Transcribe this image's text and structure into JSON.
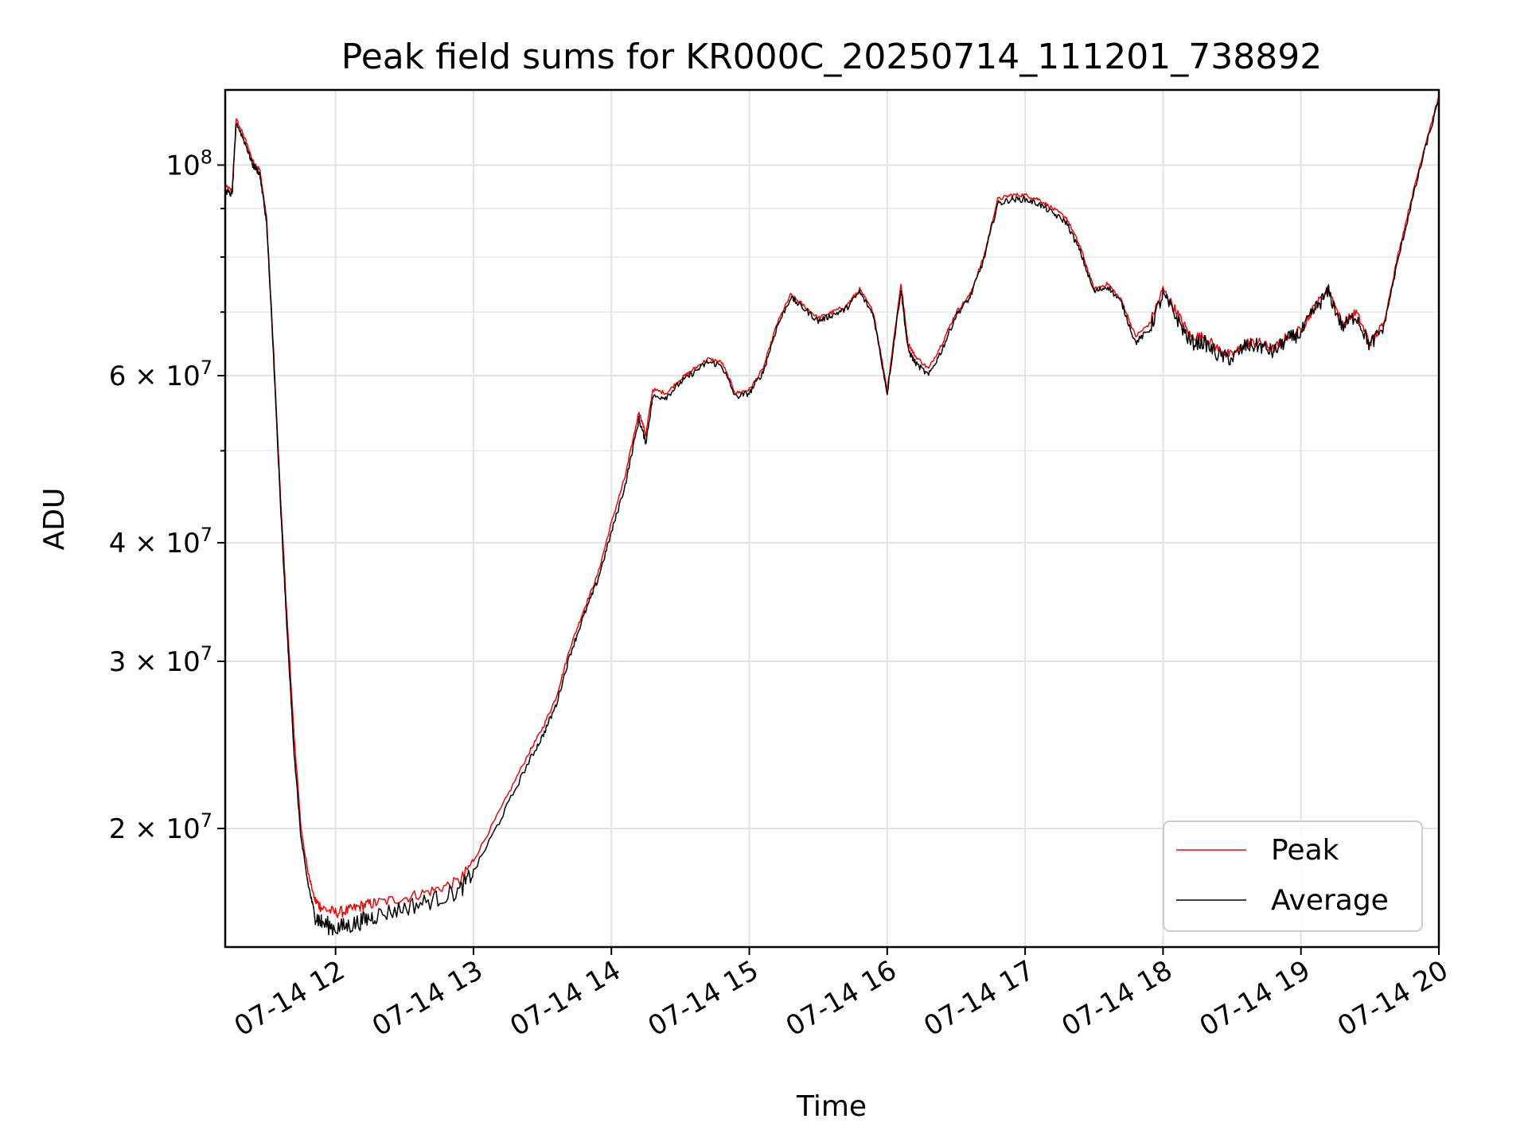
{
  "chart_data": {
    "type": "line",
    "title": "Peak field sums for KR000C_20250714_111201_738892",
    "xlabel": "Time",
    "ylabel": "ADU",
    "yscale": "log",
    "grid": true,
    "legend_position": "lower-right",
    "x_ticks": [
      "07-14 12",
      "07-14 13",
      "07-14 14",
      "07-14 15",
      "07-14 16",
      "07-14 17",
      "07-14 18",
      "07-14 19",
      "07-14 20"
    ],
    "x_tick_hours": [
      12,
      13,
      14,
      15,
      16,
      17,
      18,
      19,
      20
    ],
    "xlim_hours": [
      11.2,
      20.0
    ],
    "ylim": [
      15000000,
      120000000
    ],
    "y_ticks": [
      {
        "value": 20000000,
        "label": "2 × 10",
        "exp": "7"
      },
      {
        "value": 30000000,
        "label": "3 × 10",
        "exp": "7"
      },
      {
        "value": 40000000,
        "label": "4 × 10",
        "exp": "7"
      },
      {
        "value": 60000000,
        "label": "6 × 10",
        "exp": "7"
      },
      {
        "value": 100000000,
        "label": "10",
        "exp": "8"
      }
    ],
    "y_minor_ticks": [
      50000000,
      70000000,
      80000000,
      90000000
    ],
    "series": [
      {
        "name": "Peak",
        "color": "#ff0000",
        "hours": [
          11.2,
          11.25,
          11.28,
          11.35,
          11.4,
          11.45,
          11.5,
          11.55,
          11.6,
          11.65,
          11.7,
          11.75,
          11.8,
          11.85,
          11.9,
          12.0,
          12.1,
          12.2,
          12.3,
          12.5,
          12.7,
          12.9,
          13.0,
          13.2,
          13.4,
          13.5,
          13.6,
          13.7,
          13.8,
          13.9,
          14.0,
          14.1,
          14.2,
          14.25,
          14.3,
          14.4,
          14.5,
          14.6,
          14.7,
          14.8,
          14.9,
          15.0,
          15.1,
          15.2,
          15.3,
          15.4,
          15.5,
          15.6,
          15.7,
          15.8,
          15.9,
          16.0,
          16.1,
          16.15,
          16.2,
          16.3,
          16.4,
          16.5,
          16.6,
          16.7,
          16.8,
          16.9,
          17.0,
          17.1,
          17.2,
          17.3,
          17.4,
          17.5,
          17.6,
          17.7,
          17.8,
          17.9,
          18.0,
          18.1,
          18.2,
          18.3,
          18.4,
          18.5,
          18.6,
          18.7,
          18.8,
          18.9,
          19.0,
          19.1,
          19.2,
          19.3,
          19.4,
          19.5,
          19.6,
          19.7,
          19.8,
          19.9,
          20.0
        ],
        "values": [
          95000000,
          94000000,
          112000000,
          106000000,
          101000000,
          99000000,
          88000000,
          64000000,
          45000000,
          33000000,
          25000000,
          20000000,
          18000000,
          16800000,
          16500000,
          16300000,
          16400000,
          16600000,
          16700000,
          16900000,
          17200000,
          17600000,
          18500000,
          21000000,
          24000000,
          25500000,
          27500000,
          31000000,
          34000000,
          37000000,
          42000000,
          47000000,
          55000000,
          52000000,
          58000000,
          57500000,
          59500000,
          61000000,
          62500000,
          62000000,
          57500000,
          58000000,
          61000000,
          68000000,
          73000000,
          71000000,
          69000000,
          70000000,
          71000000,
          74000000,
          70000000,
          58000000,
          75000000,
          65000000,
          63000000,
          61000000,
          65000000,
          70000000,
          73000000,
          80000000,
          92000000,
          93000000,
          93000000,
          92000000,
          90000000,
          88000000,
          82000000,
          74000000,
          75000000,
          72000000,
          66000000,
          68000000,
          74000000,
          70000000,
          66000000,
          66000000,
          64000000,
          63000000,
          65000000,
          65000000,
          64000000,
          66000000,
          67000000,
          71000000,
          74000000,
          68000000,
          70000000,
          65000000,
          68000000,
          80000000,
          92000000,
          105000000,
          118000000
        ]
      },
      {
        "name": "Average",
        "color": "#000000",
        "hours": [
          11.2,
          11.25,
          11.28,
          11.35,
          11.4,
          11.45,
          11.5,
          11.55,
          11.6,
          11.65,
          11.7,
          11.75,
          11.8,
          11.85,
          11.9,
          12.0,
          12.1,
          12.2,
          12.3,
          12.5,
          12.7,
          12.9,
          13.0,
          13.2,
          13.4,
          13.5,
          13.6,
          13.7,
          13.8,
          13.9,
          14.0,
          14.1,
          14.2,
          14.25,
          14.3,
          14.4,
          14.5,
          14.6,
          14.7,
          14.8,
          14.9,
          15.0,
          15.1,
          15.2,
          15.3,
          15.4,
          15.5,
          15.6,
          15.7,
          15.8,
          15.9,
          16.0,
          16.1,
          16.15,
          16.2,
          16.3,
          16.4,
          16.5,
          16.6,
          16.7,
          16.8,
          16.9,
          17.0,
          17.1,
          17.2,
          17.3,
          17.4,
          17.5,
          17.6,
          17.7,
          17.8,
          17.9,
          18.0,
          18.1,
          18.2,
          18.3,
          18.4,
          18.5,
          18.6,
          18.7,
          18.8,
          18.9,
          19.0,
          19.1,
          19.2,
          19.3,
          19.4,
          19.5,
          19.6,
          19.7,
          19.8,
          19.9,
          20.0
        ],
        "values": [
          94000000,
          93000000,
          111000000,
          105000000,
          100000000,
          98000000,
          87000000,
          63000000,
          44000000,
          32000000,
          24000000,
          19500000,
          17500000,
          16200000,
          15900000,
          15700000,
          15800000,
          16000000,
          16200000,
          16500000,
          16800000,
          17200000,
          18000000,
          20500000,
          23500000,
          25000000,
          27000000,
          30500000,
          33500000,
          36500000,
          41000000,
          46000000,
          54000000,
          51000000,
          57000000,
          57000000,
          59000000,
          60500000,
          62000000,
          61500000,
          57000000,
          57500000,
          60500000,
          67500000,
          72500000,
          70500000,
          68500000,
          69500000,
          70500000,
          73500000,
          69500000,
          57500000,
          74000000,
          64000000,
          62000000,
          60000000,
          64000000,
          69500000,
          72500000,
          79500000,
          91000000,
          92000000,
          92000000,
          91000000,
          89000000,
          87000000,
          81000000,
          73500000,
          74500000,
          71500000,
          65000000,
          67000000,
          73000000,
          69000000,
          65000000,
          65000000,
          63000000,
          62500000,
          64500000,
          64500000,
          63500000,
          65500000,
          66500000,
          70500000,
          73500000,
          67500000,
          69500000,
          64500000,
          67500000,
          79000000,
          91000000,
          104000000,
          117000000
        ]
      }
    ]
  }
}
